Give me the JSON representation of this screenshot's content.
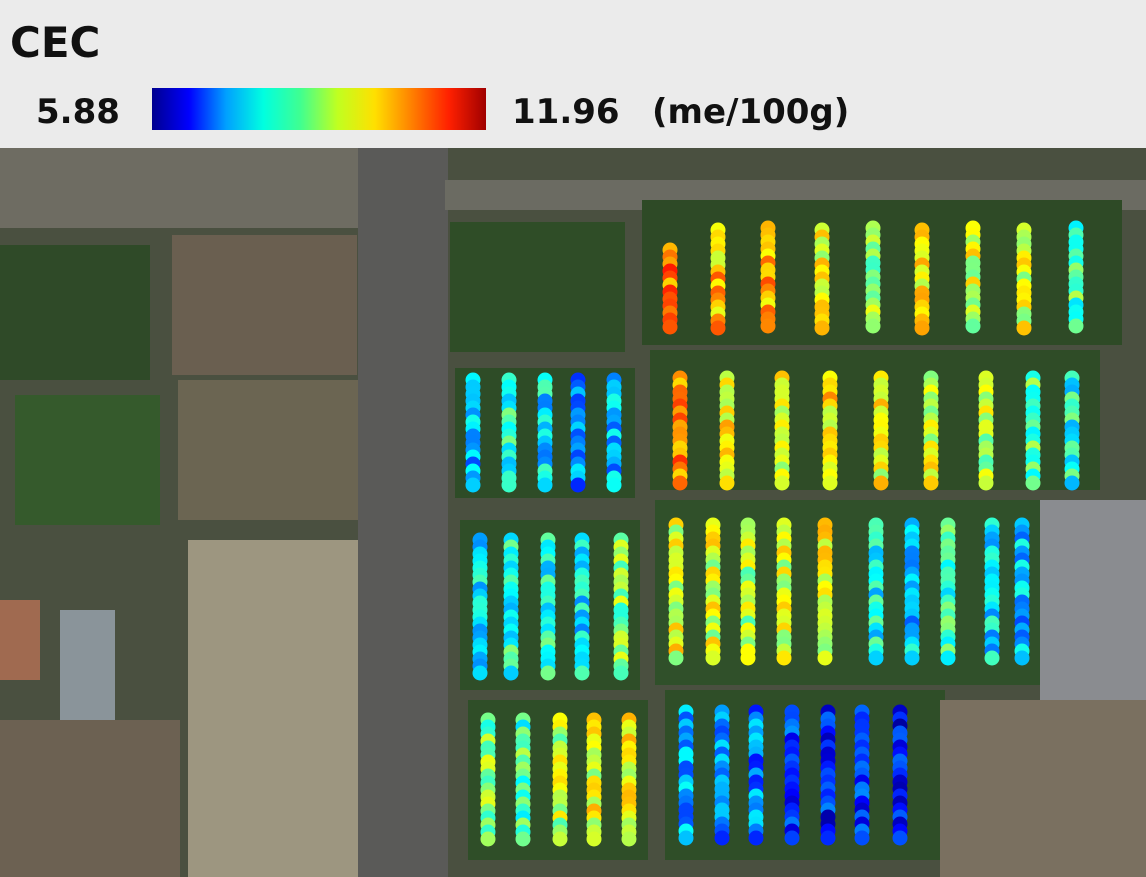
{
  "legend": {
    "title": "CEC",
    "min": 5.88,
    "max": 11.96,
    "unit": "(me/100g)"
  }
}
